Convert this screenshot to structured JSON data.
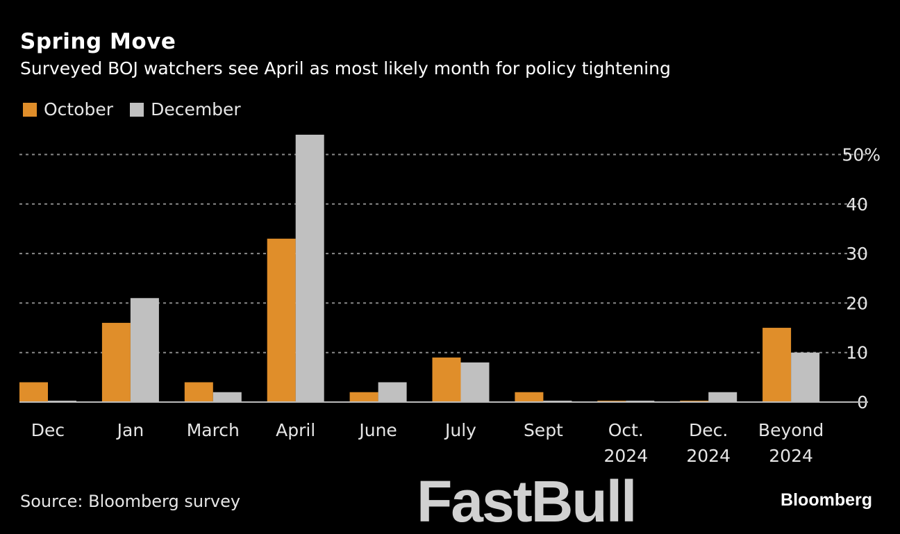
{
  "title": "Spring Move",
  "subtitle": "Surveyed BOJ watchers see April as most likely month for policy tightening",
  "source": "Source: Bloomberg survey",
  "brand": "Bloomberg",
  "watermark": "FastBull",
  "chart_data": {
    "type": "bar",
    "categories": [
      [
        "Dec"
      ],
      [
        "Jan"
      ],
      [
        "March"
      ],
      [
        "April"
      ],
      [
        "June"
      ],
      [
        "July"
      ],
      [
        "Sept"
      ],
      [
        "Oct.",
        "2024"
      ],
      [
        "Dec.",
        "2024"
      ],
      [
        "Beyond",
        "2024"
      ]
    ],
    "series": [
      {
        "name": "October",
        "color": "#e08e2a",
        "values": [
          4,
          16,
          4,
          33,
          2,
          9,
          2,
          0,
          0,
          15
        ]
      },
      {
        "name": "December",
        "color": "#c0c0c0",
        "values": [
          0,
          21,
          2,
          54,
          4,
          8,
          0,
          0,
          2,
          10
        ]
      }
    ],
    "yticks": [
      0,
      10,
      20,
      30,
      40,
      50
    ],
    "ytick_labels": [
      "0",
      "10",
      "20",
      "30",
      "40",
      "50%"
    ],
    "ylim": [
      0,
      55
    ],
    "grid": true,
    "legend": "top-left",
    "yaxis_side": "right"
  }
}
